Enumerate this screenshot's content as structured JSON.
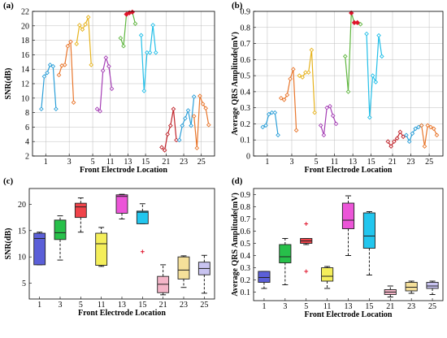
{
  "chart_data": [
    {
      "panel": "(a)",
      "type": "line",
      "xlabel": "Front Electrode Location",
      "ylabel": "SNR(dB)",
      "ylim": [
        2,
        22
      ],
      "yticks": [
        2,
        4,
        6,
        8,
        10,
        12,
        14,
        16,
        18,
        20,
        22
      ],
      "xlim": [
        0,
        27
      ],
      "xtick_positions": [
        1,
        5,
        9,
        13,
        17,
        21,
        25
      ],
      "xtick_labels": [
        "1",
        "3",
        "5",
        "11",
        "13",
        "15",
        "21",
        "23",
        "25"
      ],
      "xtick_label_positions": [
        1,
        3.5,
        6,
        9.5,
        13,
        16,
        19.5,
        22.5,
        25
      ],
      "grid": true,
      "series": [
        {
          "x": [
            0,
            0.5,
            1,
            1.5,
            2,
            2.5
          ],
          "y": [
            8.5,
            13,
            13.5,
            14.6,
            14.4,
            8.5
          ],
          "color": "#2c9fd8"
        },
        {
          "x": [
            3,
            3.5,
            4,
            4.5,
            5,
            5.5
          ],
          "y": [
            13.2,
            14.5,
            14.6,
            17.2,
            17.8,
            9.4
          ],
          "color": "#e8762c"
        },
        {
          "x": [
            6,
            6.5,
            7,
            7.5,
            8,
            8.5
          ],
          "y": [
            17.5,
            20.1,
            19.5,
            20.2,
            21.2,
            14.6
          ],
          "color": "#e6b31e"
        },
        {
          "x": [
            9.5,
            10,
            10.5,
            11,
            11.5,
            12
          ],
          "y": [
            8.5,
            8.2,
            13.8,
            15.6,
            14.4,
            11.3
          ],
          "color": "#a53fb5"
        },
        {
          "x": [
            13.5,
            14,
            14.5,
            15,
            15.5,
            16
          ],
          "y": [
            18.3,
            17.2,
            21.6,
            21.8,
            21.9,
            20.3
          ],
          "color": "#5fb63f"
        },
        {
          "x": [
            17,
            17.5,
            18,
            18.5,
            19,
            19.5
          ],
          "y": [
            18.7,
            11,
            16.3,
            16.3,
            20.1,
            16.3
          ],
          "color": "#23bfe8"
        },
        {
          "x": [
            20.5,
            21,
            21.5,
            22,
            22.5,
            23
          ],
          "y": [
            3.2,
            2.8,
            5,
            6.2,
            8.5,
            4.2
          ],
          "color": "#c0232a"
        },
        {
          "x": [
            23.5,
            24,
            24.5,
            25,
            25.5,
            26
          ],
          "y": [
            4.2,
            6.2,
            7.2,
            8.3,
            6.2,
            10.2
          ],
          "color": "#2c9fd8"
        },
        {
          "x": [
            26,
            26.5,
            27,
            27.5,
            28,
            28.5
          ],
          "y": [
            7.5,
            3.1,
            10.3,
            9.2,
            8.6,
            6.3
          ],
          "color": "#e8762c"
        }
      ],
      "markers_filled": [
        {
          "x": 14.5,
          "y": 21.6,
          "color": "#e0142b"
        },
        {
          "x": 15,
          "y": 21.8,
          "color": "#e0142b"
        },
        {
          "x": 15.5,
          "y": 21.9,
          "color": "#e0142b"
        }
      ]
    },
    {
      "panel": "(b)",
      "type": "line",
      "xlabel": "Front Electrode Location",
      "ylabel": "Average QRS Amplitude(mV)",
      "ylim": [
        0,
        0.9
      ],
      "yticks": [
        0,
        0.1,
        0.2,
        0.3,
        0.4,
        0.5,
        0.6,
        0.7,
        0.8,
        0.9
      ],
      "xtick_labels": [
        "1",
        "3",
        "5",
        "11",
        "13",
        "15",
        "21",
        "23",
        "25"
      ],
      "grid": true,
      "series": [
        {
          "x": [
            0,
            0.5,
            1,
            1.5,
            2,
            2.5
          ],
          "y": [
            0.18,
            0.19,
            0.26,
            0.27,
            0.27,
            0.13
          ],
          "color": "#2c9fd8"
        },
        {
          "x": [
            3,
            3.5,
            4,
            4.5,
            5,
            5.5
          ],
          "y": [
            0.36,
            0.35,
            0.38,
            0.48,
            0.54,
            0.16
          ],
          "color": "#e8762c"
        },
        {
          "x": [
            6,
            6.5,
            7,
            7.5,
            8,
            8.5
          ],
          "y": [
            0.5,
            0.49,
            0.52,
            0.52,
            0.66,
            0.27
          ],
          "color": "#e6b31e"
        },
        {
          "x": [
            9.5,
            10,
            10.5,
            11,
            11.5,
            12
          ],
          "y": [
            0.19,
            0.13,
            0.3,
            0.31,
            0.25,
            0.2
          ],
          "color": "#a53fb5"
        },
        {
          "x": [
            13.5,
            14,
            14.5,
            15,
            15.5,
            16
          ],
          "y": [
            0.62,
            0.4,
            0.89,
            0.83,
            0.83,
            0.82
          ],
          "color": "#5fb63f"
        },
        {
          "x": [
            17,
            17.5,
            18,
            18.5,
            19,
            19.5
          ],
          "y": [
            0.76,
            0.24,
            0.5,
            0.46,
            0.75,
            0.62
          ],
          "color": "#23bfe8"
        },
        {
          "x": [
            20.5,
            21,
            21.5,
            22,
            22.5,
            23
          ],
          "y": [
            0.09,
            0.06,
            0.09,
            0.11,
            0.15,
            0.12
          ],
          "color": "#c0232a"
        },
        {
          "x": [
            23.5,
            24,
            24.5,
            25,
            25.5,
            26
          ],
          "y": [
            0.13,
            0.09,
            0.14,
            0.17,
            0.18,
            0.19
          ],
          "color": "#2c9fd8"
        },
        {
          "x": [
            26,
            26.5,
            27,
            27.5,
            28,
            28.5
          ],
          "y": [
            0.19,
            0.06,
            0.19,
            0.18,
            0.17,
            0.13
          ],
          "color": "#e8762c"
        }
      ],
      "markers_filled": [
        {
          "x": 14.5,
          "y": 0.89,
          "color": "#e0142b"
        },
        {
          "x": 15,
          "y": 0.83,
          "color": "#e0142b"
        },
        {
          "x": 15.5,
          "y": 0.83,
          "color": "#e0142b"
        }
      ]
    },
    {
      "panel": "(c)",
      "type": "box",
      "xlabel": "Front Electrode Location",
      "ylabel": "SNR(dB)",
      "ylim": [
        2,
        23
      ],
      "yticks": [
        5,
        10,
        15,
        20
      ],
      "categories": [
        "1",
        "3",
        "5",
        "11",
        "13",
        "15",
        "21",
        "23",
        "25"
      ],
      "grid": false,
      "boxes": [
        {
          "whisker_low": 8.5,
          "q1": 8.5,
          "median": 13.5,
          "q3": 14.5,
          "whisker_high": 14.7,
          "outliers": [],
          "color": "#5b5fd8"
        },
        {
          "whisker_low": 9.4,
          "q1": 13.3,
          "median": 14.6,
          "q3": 17,
          "whisker_high": 17.8,
          "outliers": [],
          "color": "#27c04a"
        },
        {
          "whisker_low": 14.7,
          "q1": 17.5,
          "median": 19.5,
          "q3": 20.2,
          "whisker_high": 21.2,
          "outliers": [],
          "color": "#f0434a"
        },
        {
          "whisker_low": 8.2,
          "q1": 8.4,
          "median": 12.5,
          "q3": 14.5,
          "whisker_high": 15.6,
          "outliers": [],
          "color": "#f4ee5a"
        },
        {
          "whisker_low": 17.2,
          "q1": 18.3,
          "median": 21.5,
          "q3": 21.8,
          "whisker_high": 21.9,
          "outliers": [],
          "color": "#ec55d8"
        },
        {
          "whisker_low": 16.3,
          "q1": 16.3,
          "median": 18.5,
          "q3": 18.7,
          "whisker_high": 20.1,
          "outliers": [
            11
          ],
          "color": "#22c6ee"
        },
        {
          "whisker_low": 2.8,
          "q1": 3.2,
          "median": 4.8,
          "q3": 6.3,
          "whisker_high": 8.5,
          "outliers": [],
          "color": "#f4b5c8"
        },
        {
          "whisker_low": 4.2,
          "q1": 5.8,
          "median": 7.5,
          "q3": 10,
          "whisker_high": 10.2,
          "outliers": [],
          "color": "#f5e09a"
        },
        {
          "whisker_low": 3.1,
          "q1": 6.6,
          "median": 7.8,
          "q3": 9,
          "whisker_high": 10.3,
          "outliers": [],
          "color": "#c8c3f0"
        }
      ]
    },
    {
      "panel": "(d)",
      "type": "box",
      "xlabel": "Front Electrode Location",
      "ylabel": "Average QRS Amplitude(mV)",
      "ylim": [
        0.03,
        0.95
      ],
      "yticks": [
        0.1,
        0.2,
        0.3,
        0.4,
        0.5,
        0.6,
        0.7,
        0.8,
        0.9
      ],
      "categories": [
        "1",
        "3",
        "5",
        "11",
        "13",
        "15",
        "21",
        "23",
        "25"
      ],
      "grid": false,
      "boxes": [
        {
          "whisker_low": 0.13,
          "q1": 0.18,
          "median": 0.22,
          "q3": 0.27,
          "whisker_high": 0.27,
          "outliers": [],
          "color": "#5b5fd8"
        },
        {
          "whisker_low": 0.16,
          "q1": 0.34,
          "median": 0.39,
          "q3": 0.49,
          "whisker_high": 0.54,
          "outliers": [],
          "color": "#27c04a"
        },
        {
          "whisker_low": 0.49,
          "q1": 0.5,
          "median": 0.52,
          "q3": 0.54,
          "whisker_high": 0.54,
          "outliers": [
            0.66,
            0.27
          ],
          "color": "#f0434a"
        },
        {
          "whisker_low": 0.13,
          "q1": 0.19,
          "median": 0.23,
          "q3": 0.3,
          "whisker_high": 0.31,
          "outliers": [],
          "color": "#f4ee5a"
        },
        {
          "whisker_low": 0.4,
          "q1": 0.62,
          "median": 0.69,
          "q3": 0.83,
          "whisker_high": 0.89,
          "outliers": [],
          "color": "#ec55d8"
        },
        {
          "whisker_low": 0.24,
          "q1": 0.46,
          "median": 0.56,
          "q3": 0.75,
          "whisker_high": 0.76,
          "outliers": [],
          "color": "#22c6ee"
        },
        {
          "whisker_low": 0.06,
          "q1": 0.08,
          "median": 0.1,
          "q3": 0.12,
          "whisker_high": 0.15,
          "outliers": [],
          "color": "#f4b5c8"
        },
        {
          "whisker_low": 0.09,
          "q1": 0.11,
          "median": 0.14,
          "q3": 0.18,
          "whisker_high": 0.19,
          "outliers": [],
          "color": "#f5e09a"
        },
        {
          "whisker_low": 0.08,
          "q1": 0.13,
          "median": 0.15,
          "q3": 0.18,
          "whisker_high": 0.19,
          "outliers": [],
          "color": "#c8c3f0"
        }
      ]
    }
  ]
}
